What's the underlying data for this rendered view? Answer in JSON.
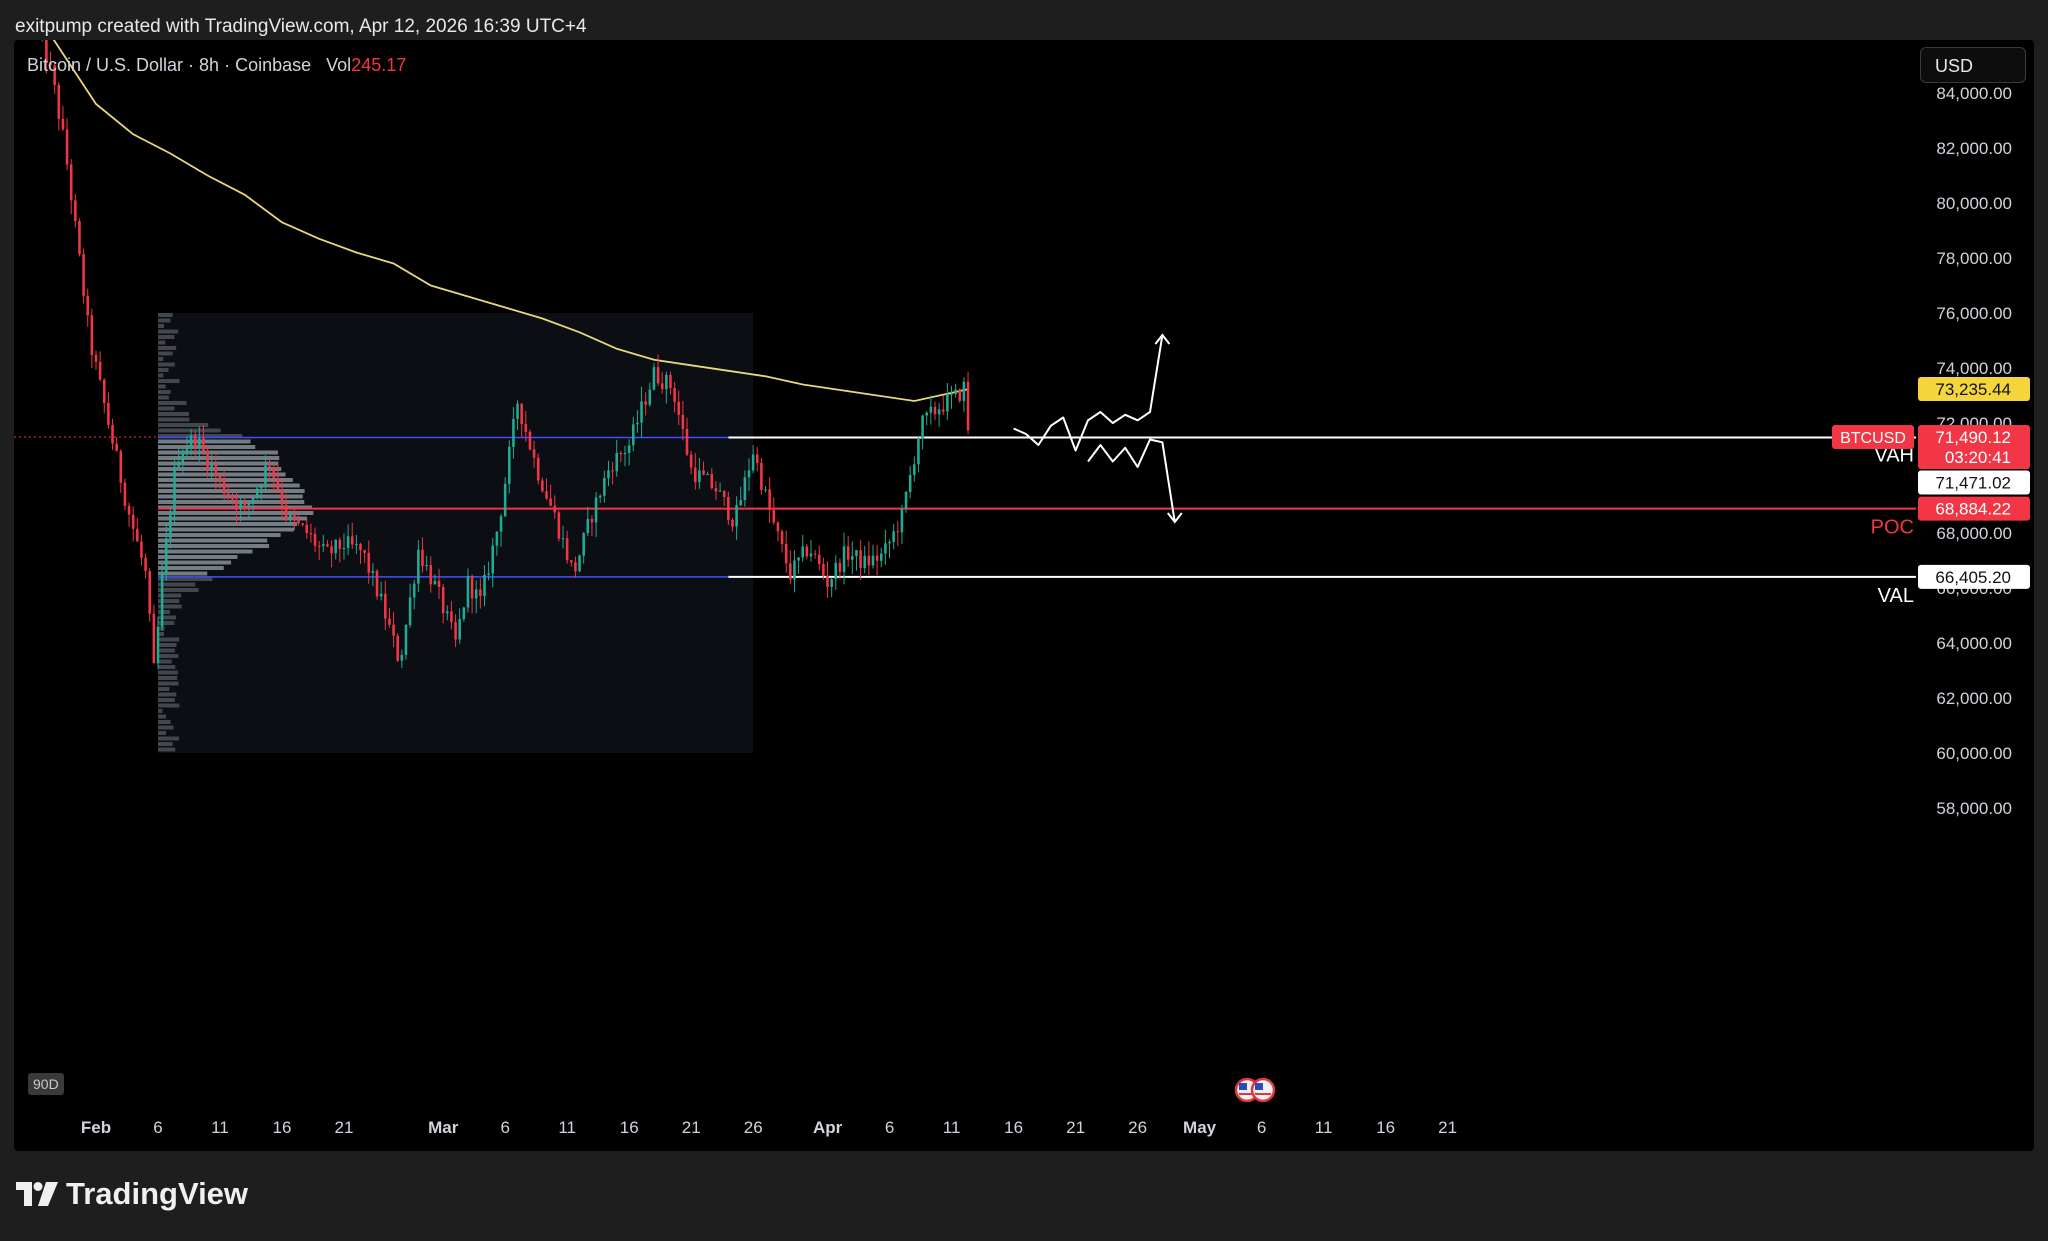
{
  "caption": "exitpump created with TradingView.com, Apr 12, 2026 16:39 UTC+4",
  "header": {
    "symbol": "Bitcoin / U.S. Dollar · 8h · Coinbase",
    "vol_label": "Vol",
    "vol_value": "245.17"
  },
  "currency_button": "USD",
  "period_badge": "90D",
  "brand": "TradingView",
  "colors": {
    "up": "#22ab94",
    "down": "#f23645",
    "ma": "#e8d87a",
    "poc": "#f23645",
    "value_area": "#3f51ff",
    "panel_bg": "#000000"
  },
  "chart_data": {
    "type": "candlestick",
    "title": "Bitcoin / U.S. Dollar · 8h · Coinbase",
    "y_axis": {
      "ticks": [
        "84,000.00",
        "82,000.00",
        "80,000.00",
        "78,000.00",
        "76,000.00",
        "74,000.00",
        "72,000.00",
        "70,000.00",
        "68,000.00",
        "66,000.00",
        "64,000.00",
        "62,000.00",
        "60,000.00",
        "58,000.00"
      ],
      "tick_values": [
        84000,
        82000,
        80000,
        78000,
        76000,
        74000,
        72000,
        70000,
        68000,
        66000,
        64000,
        62000,
        60000,
        58000
      ],
      "range": [
        56000,
        86000
      ]
    },
    "x_axis": {
      "labels": [
        "Feb",
        "6",
        "11",
        "16",
        "21",
        "Mar",
        "6",
        "11",
        "16",
        "21",
        "26",
        "Apr",
        "6",
        "11",
        "16",
        "21",
        "26",
        "May",
        "6",
        "11",
        "16",
        "21"
      ],
      "label_days": [
        0,
        5,
        10,
        15,
        20,
        28,
        33,
        38,
        43,
        48,
        53,
        59,
        64,
        69,
        74,
        79,
        84,
        89,
        94,
        99,
        104,
        109
      ],
      "bold": [
        "Feb",
        "Mar",
        "Apr",
        "May"
      ],
      "day_zero": "Feb 1"
    },
    "candles_key": [
      "day",
      "open",
      "high",
      "low",
      "close"
    ],
    "candle_period_days": 0.3333,
    "anchors": [
      [
        -5,
        87000
      ],
      [
        -3.5,
        84500
      ],
      [
        -2.5,
        82000
      ],
      [
        -1.5,
        78500
      ],
      [
        -0.5,
        75000
      ],
      [
        1,
        72000
      ],
      [
        2.5,
        69000
      ],
      [
        4,
        66500
      ],
      [
        4.7,
        62800
      ],
      [
        5.3,
        66200
      ],
      [
        6.5,
        70800
      ],
      [
        8,
        71500
      ],
      [
        10,
        69800
      ],
      [
        12,
        68800
      ],
      [
        14,
        70600
      ],
      [
        15.5,
        68500
      ],
      [
        17,
        68000
      ],
      [
        18.5,
        67200
      ],
      [
        20,
        67600
      ],
      [
        21.5,
        67300
      ],
      [
        23,
        65500
      ],
      [
        24.5,
        63300
      ],
      [
        26,
        67400
      ],
      [
        27.5,
        65900
      ],
      [
        29,
        64000
      ],
      [
        30,
        66200
      ],
      [
        31,
        65500
      ],
      [
        32.5,
        68400
      ],
      [
        34,
        72800
      ],
      [
        35.5,
        70400
      ],
      [
        37,
        68600
      ],
      [
        38.5,
        66500
      ],
      [
        40,
        68700
      ],
      [
        41.5,
        70500
      ],
      [
        43,
        71200
      ],
      [
        45,
        73800
      ],
      [
        46.5,
        73300
      ],
      [
        48,
        70300
      ],
      [
        50,
        69600
      ],
      [
        51.5,
        68400
      ],
      [
        53,
        71000
      ],
      [
        54.5,
        68500
      ],
      [
        56,
        66500
      ],
      [
        57.5,
        67500
      ],
      [
        59,
        66200
      ],
      [
        60.5,
        67300
      ],
      [
        62,
        66900
      ],
      [
        63.5,
        67200
      ],
      [
        65,
        68600
      ],
      [
        66.5,
        71900
      ],
      [
        68,
        72600
      ],
      [
        69.5,
        73000
      ],
      [
        70,
        73300
      ],
      [
        70.4,
        71500
      ]
    ],
    "ma_points": [
      [
        -3.5,
        86000
      ],
      [
        0,
        83600
      ],
      [
        3,
        82500
      ],
      [
        6,
        81800
      ],
      [
        9,
        81000
      ],
      [
        12,
        80300
      ],
      [
        15,
        79300
      ],
      [
        18,
        78700
      ],
      [
        21,
        78200
      ],
      [
        24,
        77800
      ],
      [
        27,
        77000
      ],
      [
        30,
        76600
      ],
      [
        33,
        76200
      ],
      [
        36,
        75800
      ],
      [
        39,
        75300
      ],
      [
        42,
        74700
      ],
      [
        45,
        74300
      ],
      [
        48,
        74100
      ],
      [
        51,
        73900
      ],
      [
        54,
        73700
      ],
      [
        57,
        73400
      ],
      [
        60,
        73200
      ],
      [
        63,
        73000
      ],
      [
        66,
        72800
      ],
      [
        70.4,
        73235
      ]
    ],
    "volume_profile": {
      "day_range": [
        5,
        53
      ],
      "price_range": [
        60000,
        76000
      ],
      "poc": 68884.22,
      "vah": 71471.02,
      "val": 66405.2
    },
    "levels": [
      {
        "name": "VAH",
        "price_label": "71,471.02",
        "value": 71471.02
      },
      {
        "name": "POC",
        "price_label": "68,884.22",
        "value": 68884.22
      },
      {
        "name": "VAL",
        "price_label": "66,405.20",
        "value": 66405.2
      }
    ],
    "price_tags": {
      "ma": {
        "label": "73,235.44",
        "value": 73235.44
      },
      "last": {
        "symbol": "BTCUSD",
        "label": "71,490.12",
        "countdown": "03:20:41",
        "value": 71490.12
      }
    },
    "projection_up": [
      [
        74,
        71800
      ],
      [
        75,
        71600
      ],
      [
        76,
        71200
      ],
      [
        77,
        71900
      ],
      [
        78,
        72200
      ],
      [
        79,
        71000
      ],
      [
        80,
        72100
      ],
      [
        81,
        72400
      ],
      [
        82,
        72000
      ],
      [
        83,
        72300
      ],
      [
        84,
        72100
      ],
      [
        85,
        72400
      ],
      [
        86,
        75200
      ]
    ],
    "projection_down": [
      [
        80,
        70600
      ],
      [
        81,
        71200
      ],
      [
        82,
        70600
      ],
      [
        83,
        71100
      ],
      [
        84,
        70400
      ],
      [
        85,
        71400
      ],
      [
        86,
        71300
      ],
      [
        87,
        68400
      ]
    ]
  }
}
